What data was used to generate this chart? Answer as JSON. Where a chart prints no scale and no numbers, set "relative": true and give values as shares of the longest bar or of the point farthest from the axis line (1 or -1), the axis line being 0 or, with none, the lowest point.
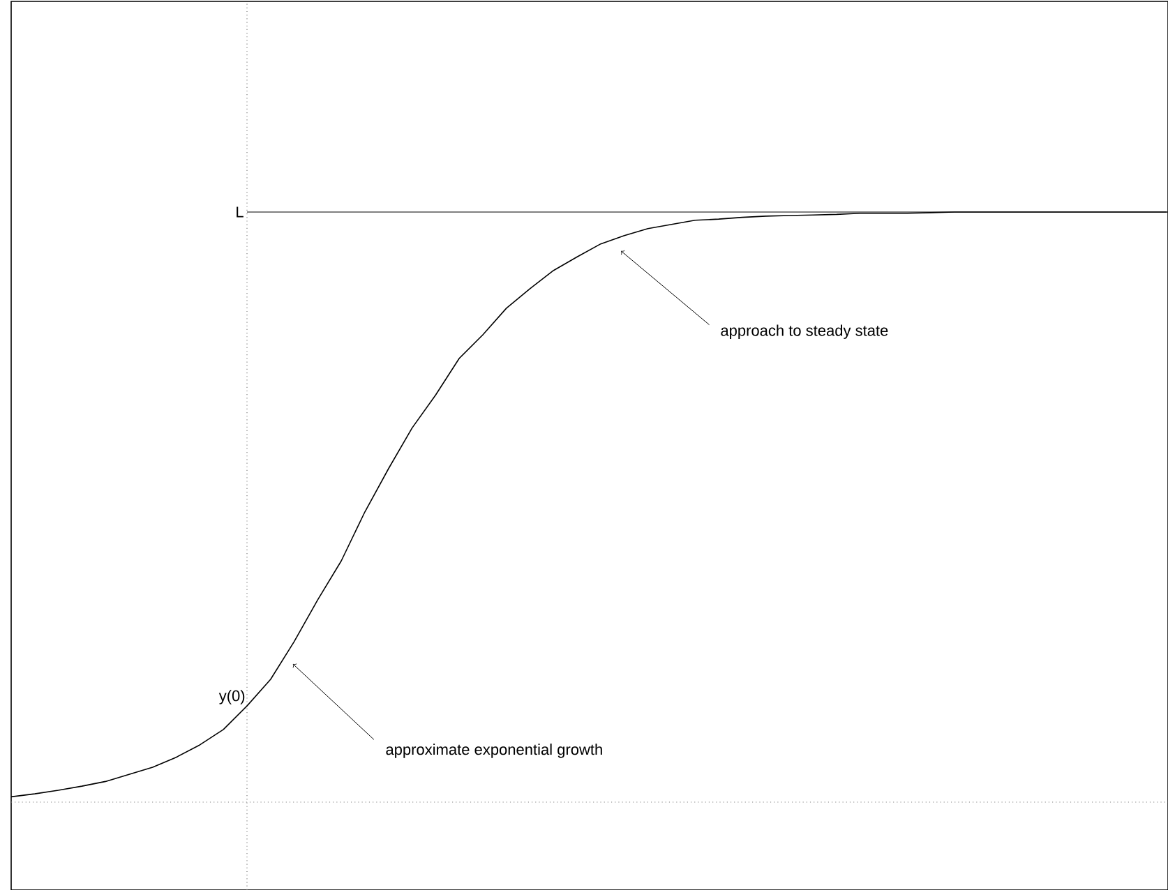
{
  "chart_data": {
    "type": "line",
    "relative": true,
    "marker": "none",
    "line_style": "solid",
    "categories": [
      null,
      null,
      null,
      null,
      null,
      null,
      null,
      null,
      null,
      null,
      null,
      null,
      null,
      null,
      null,
      null,
      null,
      null,
      null,
      null,
      null,
      null,
      null,
      null,
      null,
      null,
      null,
      null,
      null,
      null,
      null,
      null,
      null,
      null,
      null,
      null,
      null,
      null,
      null,
      null,
      null,
      null,
      null,
      null,
      null,
      null,
      null,
      null,
      null,
      null
    ],
    "series": [
      {
        "color": "#000000",
        "values": [
          0.009,
          0.014,
          0.02,
          0.027,
          0.035,
          0.047,
          0.059,
          0.076,
          0.097,
          0.123,
          0.163,
          0.208,
          0.272,
          0.343,
          0.409,
          0.492,
          0.565,
          0.634,
          0.69,
          0.752,
          0.792,
          0.837,
          0.87,
          0.901,
          0.924,
          0.946,
          0.96,
          0.972,
          0.979,
          0.986,
          0.988,
          0.991,
          0.993,
          0.994,
          0.995,
          0.996,
          0.998,
          0.998,
          0.998,
          0.999,
          1,
          1,
          1,
          1,
          1,
          1,
          1,
          1,
          1,
          1
        ]
      }
    ],
    "ref_lines": [
      {
        "axis": "y",
        "value": 1,
        "label": "L",
        "color": "#000000",
        "line_style": "solid"
      }
    ],
    "annotations": [
      "y(0)",
      "approximate exponential growth",
      "approach to steady state"
    ]
  }
}
